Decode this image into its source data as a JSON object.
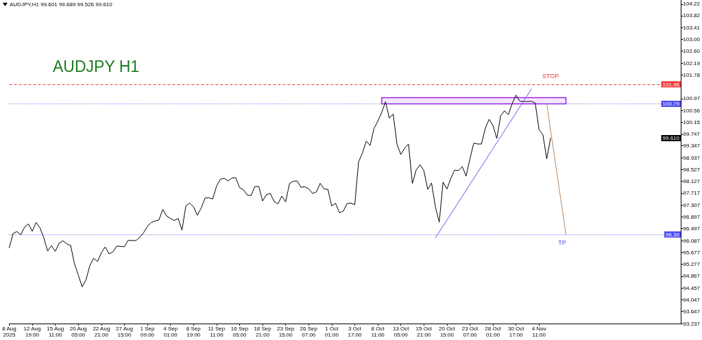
{
  "chart_data": {
    "type": "line",
    "title": "AUDJPY H1",
    "annotations": [
      "AUDJPY,H1 99.601 99.689 99.526 99.610",
      {
        "text": "101.46",
        "y": 101.46
      },
      {
        "text": "100.79",
        "y": 100.79
      },
      {
        "text": "99.610",
        "y": 99.61
      },
      {
        "text": "96.30",
        "y": 96.3
      }
    ],
    "categories": [
      "8 Aug 2025",
      null,
      null,
      null,
      null,
      null,
      "12 Aug 19:00",
      null,
      null,
      null,
      null,
      null,
      "15 Aug 11:00",
      null,
      null,
      null,
      null,
      null,
      "20 Aug 05:00",
      null,
      null,
      null,
      null,
      null,
      "22 Aug 21:00",
      null,
      null,
      null,
      null,
      null,
      "27 Aug 15:00",
      null,
      null,
      null,
      null,
      null,
      "1 Sep 09:00",
      null,
      null,
      null,
      null,
      null,
      "4 Sep 01:00",
      null,
      null,
      null,
      null,
      null,
      "8 Sep 19:00",
      null,
      null,
      null,
      null,
      null,
      "11 Sep 11:00",
      null,
      null,
      null,
      null,
      null,
      "16 Sep 05:00",
      null,
      null,
      null,
      null,
      null,
      "18 Sep 21:00",
      null,
      null,
      null,
      null,
      null,
      "23 Sep 15:00",
      null,
      null,
      null,
      null,
      null,
      "26 Sep 07:00",
      null,
      null,
      null,
      null,
      null,
      "1 Oct 01:00",
      null,
      null,
      null,
      null,
      null,
      "3 Oct 17:00",
      null,
      null,
      null,
      null,
      null,
      "8 Oct 11:00",
      null,
      null,
      null,
      null,
      null,
      "13 Oct 05:00",
      null,
      null,
      null,
      null,
      null,
      "15 Oct 21:00",
      null,
      null,
      null,
      null,
      null,
      "20 Oct 15:00",
      null,
      null,
      null,
      null,
      null,
      "23 Oct 07:00",
      null,
      null,
      null,
      null,
      null,
      "28 Oct 01:00",
      null,
      null,
      null,
      null,
      null,
      "30 Oct 17:00",
      null,
      null,
      null,
      null,
      null,
      "4 Nov 11:00",
      null,
      null,
      null,
      null,
      null,
      null,
      null,
      null,
      null,
      null,
      null,
      null,
      null,
      null,
      null,
      null,
      null,
      null,
      null,
      null,
      null,
      null,
      null,
      null,
      null,
      null,
      null,
      null,
      null,
      null,
      null,
      null,
      null,
      null,
      null,
      null,
      null
    ],
    "series": [
      {
        "color": "#000000",
        "values": [
          95.84,
          96.33,
          96.4,
          96.29,
          96.55,
          96.66,
          96.41,
          96.71,
          96.53,
          96.19,
          95.73,
          95.91,
          95.72,
          96.0,
          96.08,
          95.98,
          95.92,
          95.29,
          94.9,
          94.5,
          94.74,
          95.23,
          95.48,
          95.37,
          95.67,
          95.87,
          95.63,
          95.7,
          95.9,
          95.89,
          95.88,
          96.1,
          96.09,
          96.09,
          96.2,
          96.36,
          96.58,
          96.71,
          96.76,
          96.8,
          97.16,
          96.93,
          96.85,
          96.78,
          96.85,
          96.45,
          97.28,
          97.38,
          97.25,
          96.96,
          97.21,
          97.55,
          97.56,
          97.52,
          97.96,
          98.2,
          98.23,
          98.14,
          98.24,
          98.25,
          97.91,
          97.84,
          97.65,
          97.64,
          97.95,
          97.95,
          97.45,
          97.67,
          97.71,
          97.43,
          97.35,
          97.62,
          97.42,
          98.05,
          98.13,
          98.14,
          97.92,
          97.94,
          97.87,
          97.71,
          97.76,
          98.06,
          97.87,
          97.85,
          97.28,
          97.37,
          97.05,
          97.1,
          97.36,
          97.38,
          97.32,
          98.8,
          99.1,
          99.51,
          99.36,
          99.94,
          100.19,
          100.49,
          100.86,
          100.3,
          100.44,
          99.4,
          99.05,
          99.27,
          99.41,
          98.05,
          98.52,
          98.7,
          98.49,
          97.85,
          98.07,
          97.25,
          96.72,
          98.1,
          97.86,
          98.22,
          98.51,
          98.5,
          98.63,
          98.31,
          98.9,
          99.44,
          99.41,
          99.41,
          99.95,
          100.26,
          100.04,
          99.6,
          100.38,
          100.55,
          100.42,
          100.8,
          101.09,
          100.88,
          100.87,
          100.87,
          100.88,
          100.82,
          99.9,
          99.73,
          98.9,
          99.61,
          null,
          null,
          null,
          null,
          null,
          null,
          null,
          null,
          null,
          null,
          null,
          null,
          null,
          null,
          null,
          null,
          null,
          null,
          null,
          null,
          null,
          null,
          null,
          null,
          null,
          null,
          null,
          null,
          null,
          null,
          null,
          null,
          null,
          null
        ]
      },
      {
        "color": "#5a5af0",
        "values": [
          null,
          null,
          null,
          null,
          null,
          null,
          null,
          null,
          null,
          null,
          null,
          null,
          null,
          null,
          null,
          null,
          null,
          null,
          null,
          null,
          null,
          null,
          null,
          null,
          null,
          null,
          null,
          null,
          null,
          null,
          null,
          null,
          null,
          null,
          null,
          null,
          null,
          null,
          null,
          null,
          null,
          null,
          null,
          null,
          null,
          null,
          null,
          null,
          null,
          null,
          null,
          null,
          null,
          null,
          null,
          null,
          null,
          null,
          null,
          null,
          null,
          null,
          null,
          null,
          null,
          null,
          null,
          null,
          null,
          null,
          null,
          null,
          null,
          null,
          null,
          null,
          null,
          null,
          null,
          null,
          null,
          null,
          null,
          null,
          null,
          null,
          null,
          null,
          null,
          null,
          null,
          null,
          null,
          null,
          null,
          null,
          null,
          null,
          null,
          null,
          null,
          null,
          null,
          null,
          null,
          null,
          null,
          null,
          null,
          null,
          null,
          96.18,
          null,
          null,
          null,
          null,
          null,
          null,
          null,
          null,
          null,
          null,
          null,
          null,
          null,
          null,
          null,
          null,
          null,
          null,
          null,
          null,
          null,
          null,
          null,
          null,
          101.3,
          null,
          null,
          null,
          null,
          null,
          null,
          null,
          null,
          null,
          null,
          null,
          null,
          null,
          null,
          null,
          null,
          null,
          null,
          null,
          null,
          null,
          null,
          null,
          null,
          null,
          null,
          null,
          null,
          null,
          null,
          null,
          null,
          null,
          null,
          null,
          null,
          null,
          null,
          null
        ]
      },
      {
        "color": "#b8875f",
        "values": [
          null,
          null,
          null,
          null,
          null,
          null,
          null,
          null,
          null,
          null,
          null,
          null,
          null,
          null,
          null,
          null,
          null,
          null,
          null,
          null,
          null,
          null,
          null,
          null,
          null,
          null,
          null,
          null,
          null,
          null,
          null,
          null,
          null,
          null,
          null,
          null,
          null,
          null,
          null,
          null,
          null,
          null,
          null,
          null,
          null,
          null,
          null,
          null,
          null,
          null,
          null,
          null,
          null,
          null,
          null,
          null,
          null,
          null,
          null,
          null,
          null,
          null,
          null,
          null,
          null,
          null,
          null,
          null,
          null,
          null,
          null,
          null,
          null,
          null,
          null,
          null,
          null,
          null,
          null,
          null,
          null,
          null,
          null,
          null,
          null,
          null,
          null,
          null,
          null,
          null,
          null,
          null,
          null,
          null,
          null,
          null,
          null,
          null,
          null,
          null,
          null,
          null,
          null,
          null,
          null,
          null,
          null,
          null,
          null,
          null,
          null,
          null,
          null,
          null,
          null,
          null,
          null,
          null,
          null,
          null,
          null,
          null,
          null,
          null,
          null,
          null,
          null,
          null,
          null,
          null,
          null,
          null,
          null,
          null,
          null,
          null,
          null,
          null,
          null,
          null,
          100.79,
          null,
          null,
          null,
          null,
          96.3,
          null,
          null,
          null,
          null,
          null,
          null,
          null,
          null,
          null,
          null,
          null,
          null,
          null,
          null,
          null,
          null,
          null,
          null,
          null,
          null,
          null,
          null,
          null,
          null,
          null,
          null,
          null,
          null,
          null,
          null
        ]
      }
    ],
    "ylim": [
      93.237,
      104.36
    ],
    "yticks": [
      104.22,
      103.82,
      103.41,
      {
        "value": 103,
        "label": "103.00"
      },
      {
        "value": 102.6,
        "label": "102.60"
      },
      102.19,
      101.78,
      100.97,
      100.56,
      100.15,
      99.747,
      99.347,
      98.937,
      98.527,
      98.127,
      97.717,
      97.307,
      96.897,
      96.497,
      96.087,
      95.677,
      95.277,
      94.867,
      94.457,
      94.047,
      93.647,
      93.237
    ],
    "ref_lines": [
      {
        "axis": "y",
        "value": 101.46,
        "label": "STOP",
        "color": "#f03c3c",
        "line_style": "dashed"
      },
      {
        "axis": "y",
        "value": 100.79,
        "color": "#4a4af0",
        "line_style": "dotted"
      },
      {
        "axis": "y",
        "value": 96.3,
        "label": "TP",
        "color": "#4a4af0",
        "line_style": "dotted"
      }
    ],
    "bands": [
      {
        "axis": "y",
        "from": 100.79,
        "to": 101.0,
        "color": "#a21fe0"
      }
    ],
    "grid": false,
    "marker": "none"
  }
}
